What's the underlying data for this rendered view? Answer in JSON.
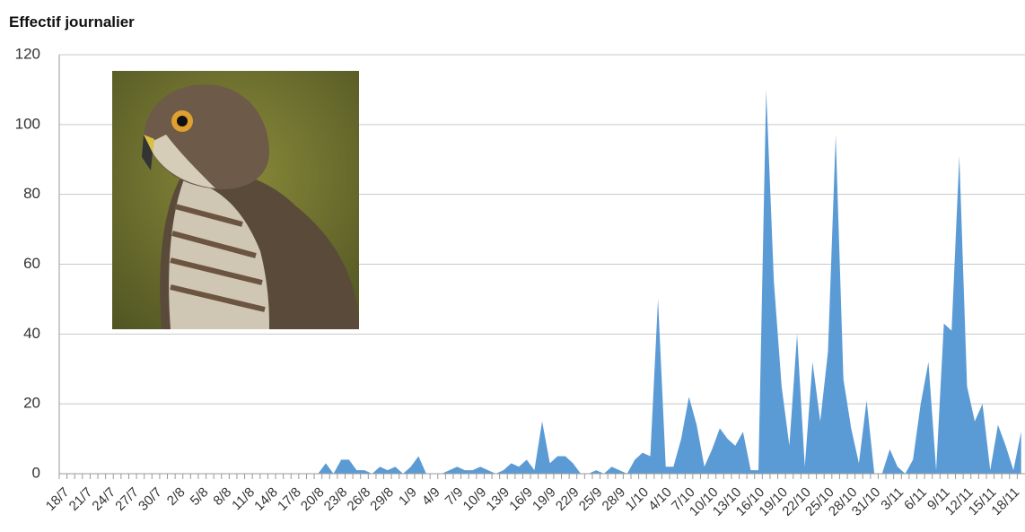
{
  "chart_data": {
    "type": "area",
    "title": "Effectif journalier",
    "categories": [
      "18/7",
      null,
      null,
      "21/7",
      null,
      null,
      "24/7",
      null,
      null,
      "27/7",
      null,
      null,
      "30/7",
      null,
      null,
      "2/8",
      null,
      null,
      "5/8",
      null,
      null,
      "8/8",
      null,
      null,
      "11/8",
      null,
      null,
      "14/8",
      null,
      null,
      "17/8",
      null,
      null,
      "20/8",
      null,
      null,
      "23/8",
      null,
      null,
      "26/8",
      null,
      null,
      "29/8",
      null,
      null,
      "1/9",
      null,
      null,
      "4/9",
      null,
      null,
      "7/9",
      null,
      null,
      "10/9",
      null,
      null,
      "13/9",
      null,
      null,
      "16/9",
      null,
      null,
      "19/9",
      null,
      null,
      "22/9",
      null,
      null,
      "25/9",
      null,
      null,
      "28/9",
      null,
      null,
      "1/10",
      null,
      null,
      "4/10",
      null,
      null,
      "7/10",
      null,
      null,
      "10/10",
      null,
      null,
      "13/10",
      null,
      null,
      "16/10",
      null,
      null,
      "19/10",
      null,
      null,
      "22/10",
      null,
      null,
      "25/10",
      null,
      null,
      "28/10",
      null,
      null,
      "31/10",
      null,
      null,
      "3/11",
      null,
      null,
      "6/11",
      null,
      null,
      "9/11",
      null,
      null,
      "12/11",
      null,
      null,
      "15/11",
      null,
      null,
      "18/11",
      null
    ],
    "values": [
      0,
      0,
      0,
      0,
      0,
      0,
      0,
      0,
      0,
      0,
      0,
      0,
      0,
      0,
      0,
      0,
      0,
      0,
      0,
      0,
      0,
      0,
      0,
      0,
      0,
      0,
      0,
      0,
      0,
      0,
      0,
      0,
      0,
      0,
      3,
      0,
      4,
      4,
      1,
      1,
      0,
      2,
      1,
      2,
      0,
      2,
      5,
      0,
      0,
      0,
      1,
      2,
      1,
      1,
      2,
      1,
      0,
      1,
      3,
      2,
      4,
      1,
      15,
      3,
      5,
      5,
      3,
      0,
      0,
      1,
      0,
      2,
      1,
      0,
      4,
      6,
      5,
      50,
      2,
      2,
      10,
      22,
      14,
      2,
      7,
      13,
      10,
      8,
      12,
      1,
      1,
      110,
      55,
      25,
      8,
      40,
      2,
      32,
      15,
      35,
      97,
      27,
      13,
      3,
      21,
      0,
      0,
      7,
      2,
      0,
      4,
      20,
      32,
      1,
      43,
      41,
      91,
      25,
      15,
      20,
      1,
      14,
      8,
      1,
      12
    ],
    "color": "#5b9bd5",
    "ylim": [
      0,
      120
    ],
    "yticks": [
      0,
      20,
      40,
      60,
      80,
      100,
      120
    ],
    "grid": true
  }
}
